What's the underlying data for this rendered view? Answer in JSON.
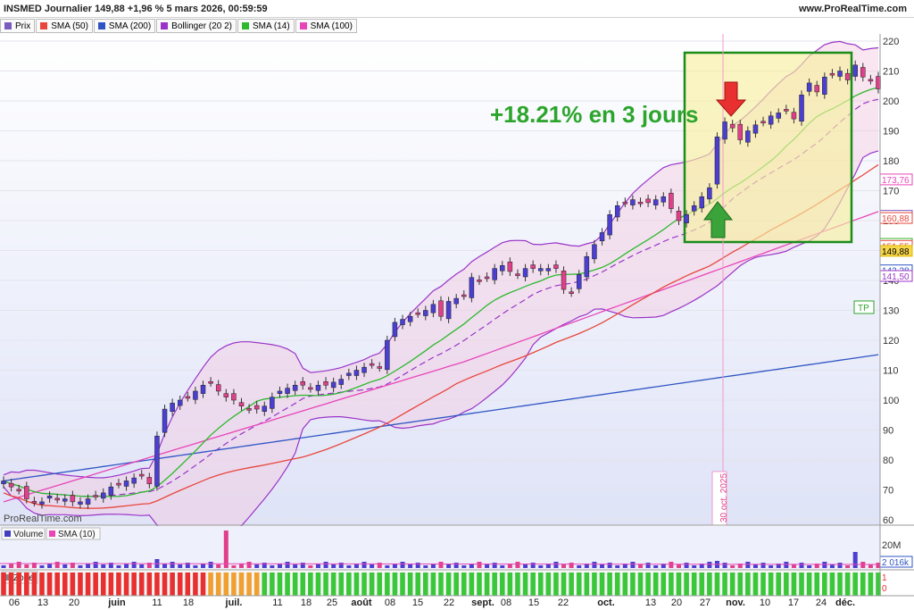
{
  "header": {
    "title": "INSMED Journalier 149,88 +1,96 % 5 mars 2026, 00:59:59",
    "site": "www.ProRealTime.com"
  },
  "legend": [
    {
      "label": "Prix",
      "color": "#7a5cc0"
    },
    {
      "label": "SMA (50)",
      "color": "#e8463c"
    },
    {
      "label": "SMA (200)",
      "color": "#2f55c4"
    },
    {
      "label": "Bollinger (20 2)",
      "color": "#9a34c8"
    },
    {
      "label": "SMA (14)",
      "color": "#2eb82e"
    },
    {
      "label": "SMA (100)",
      "color": "#e845b8"
    }
  ],
  "watermark": "ProRealTime.com",
  "annotation": "+18.21% en 3 jours",
  "vline_label": "30 oct. 2025",
  "tp_label": "TP",
  "volume_panel": {
    "legend": [
      {
        "label": "Volume",
        "color": "#4040c0"
      },
      {
        "label": "SMA (10)",
        "color": "#e845b8"
      }
    ],
    "ticks": [
      "20M"
    ],
    "value_badge": "2 016k"
  },
  "zone_panel": {
    "legend": [
      {
        "label": "Zone",
        "color": "#888888"
      }
    ],
    "ticks": [
      "1",
      "0"
    ]
  },
  "colors": {
    "up": "#4a3fd0",
    "down": "#e0408a",
    "sma14": "#2eb82e",
    "sma50": "#e8463c",
    "sma100": "#e845b8",
    "sma200": "#2f55c4",
    "bollinger": "#9a34c8",
    "box_border": "#1a8c1a",
    "box_fill": "#f7f0a0",
    "annotation": "#2ca52c",
    "arrow_up": "#3aa43a",
    "arrow_down": "#e83030"
  },
  "chart_data": {
    "type": "candlestick",
    "y_ticks": [
      60,
      70,
      80,
      90,
      100,
      110,
      120,
      130,
      140,
      150,
      160,
      170,
      180,
      190,
      200,
      210,
      220
    ],
    "ylim": [
      55,
      224
    ],
    "x_tick_labels": [
      "06",
      "13",
      "20",
      "juin",
      "11",
      "18",
      "juil.",
      "11",
      "18",
      "25",
      "août",
      "08",
      "15",
      "22",
      "sept.",
      "08",
      "15",
      "22",
      "oct.",
      "13",
      "20",
      "27",
      "nov.",
      "10",
      "17",
      "24",
      "déc."
    ],
    "price_badges": [
      {
        "label": "173,76",
        "value": 173.76,
        "color": "#e845b8"
      },
      {
        "label": "161,61",
        "value": 161.61,
        "color": "#7a5cc0"
      },
      {
        "label": "160,88",
        "value": 160.88,
        "color": "#e8463c"
      },
      {
        "label": "152,23",
        "value": 152.23,
        "color": "#2eb82e"
      },
      {
        "label": "151,55",
        "value": 151.55,
        "color": "#e8463c"
      },
      {
        "label": "149,88",
        "value": 149.88,
        "color": "#e0b800"
      },
      {
        "label": "143,38",
        "value": 143.38,
        "color": "#2f55c4"
      },
      {
        "label": "141,50",
        "value": 141.5,
        "color": "#9a34c8"
      }
    ],
    "series": [
      {
        "name": "Prix",
        "close": [
          73,
          71,
          70,
          67,
          66,
          66,
          68,
          67,
          67,
          66,
          66,
          67,
          68,
          69,
          71,
          72,
          73,
          74,
          75,
          72,
          88,
          97,
          99,
          100,
          101,
          103,
          105,
          106,
          103,
          101,
          100,
          98,
          97,
          97,
          98,
          101,
          103,
          104,
          105,
          105,
          104,
          105,
          105,
          106,
          107,
          109,
          110,
          111,
          112,
          111,
          120,
          126,
          127,
          128,
          129,
          130,
          132,
          128,
          133,
          134,
          135,
          141,
          140,
          141,
          144,
          145,
          143,
          142,
          144,
          144,
          144,
          144,
          144,
          137,
          136,
          142,
          148,
          152,
          156,
          162,
          165,
          166,
          167,
          166,
          166,
          167,
          168,
          164,
          160,
          162,
          165,
          168,
          171,
          188,
          193,
          191,
          187,
          190,
          192,
          193,
          195,
          196,
          197,
          194,
          202,
          206,
          203,
          208,
          209,
          210,
          207,
          212,
          208,
          207,
          204
        ]
      }
    ],
    "volume_spike_values_M": [
      28,
      5
    ]
  }
}
